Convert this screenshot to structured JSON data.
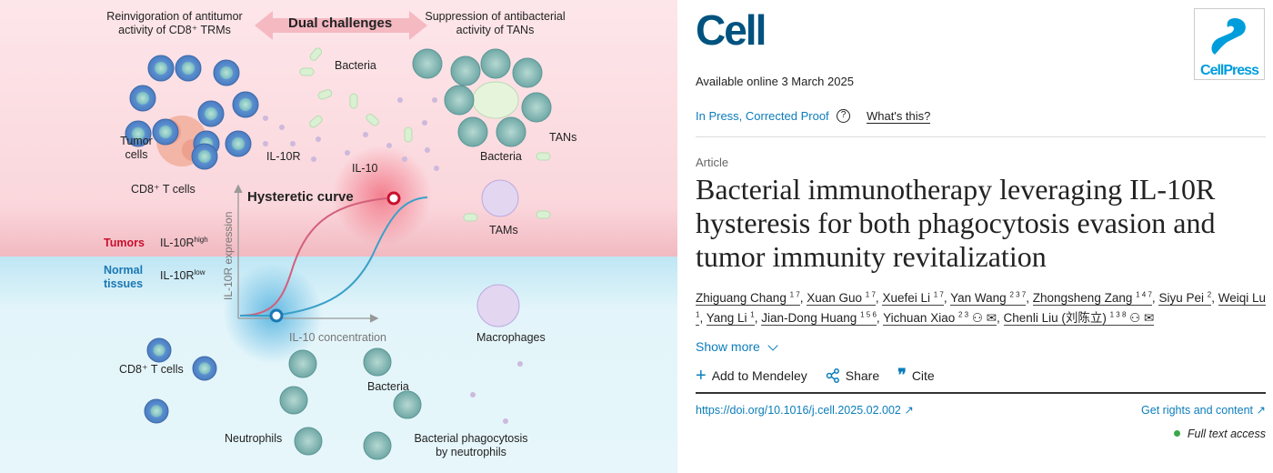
{
  "figure": {
    "top_left_title": "Reinvigoration of antitumor activity of CD8⁺ TRMs",
    "center_title": "Dual challenges",
    "top_right_title": "Suppression of antibacterial activity of TANs",
    "labels": {
      "bacteria_top": "Bacteria",
      "tumor_cells": "Tumor cells",
      "cd8_t_cells_top": "CD8⁺ T cells",
      "il10r": "IL-10R",
      "il10": "IL-10",
      "bacteria_right": "Bacteria",
      "tans": "TANs",
      "tams": "TAMs",
      "hysteretic_curve": "Hysteretic curve",
      "y_axis": "IL-10R expression",
      "x_axis": "IL-10 concentration",
      "tumors": "Tumors",
      "il10r_high": "IL-10R",
      "high_sup": "high",
      "normal_tissues": "Normal tissues",
      "il10r_low": "IL-10R",
      "low_sup": "low",
      "macrophages": "Macrophages",
      "cd8_t_cells_bottom": "CD8⁺ T cells",
      "bacteria_bottom": "Bacteria",
      "neutrophils": "Neutrophils",
      "phagocytosis": "Bacterial phagocytosis by neutrophils"
    },
    "colors": {
      "tumor_zone": "#fbe3e6",
      "normal_zone": "#e4f5f9",
      "tumor_red": "#c8102e",
      "normal_blue": "#1a78b4"
    }
  },
  "journal": {
    "logo": "Cell",
    "publisher_logo": "CellPress",
    "available_online": "Available online 3 March 2025",
    "status": "In Press, Corrected Proof",
    "help_icon": "question-circle-icon",
    "whats_this": "What's this?",
    "article_type": "Article",
    "title": "Bacterial immunotherapy leveraging IL-10R hysteresis for both phagocytosis evasion and tumor immunity revitalization",
    "authors": [
      {
        "name": "Zhiguang Chang",
        "sup": "1 7"
      },
      {
        "name": "Xuan Guo",
        "sup": "1 7"
      },
      {
        "name": "Xuefei Li",
        "sup": "1 7"
      },
      {
        "name": "Yan Wang",
        "sup": "2 3 7"
      },
      {
        "name": "Zhongsheng Zang",
        "sup": "1 4 7"
      },
      {
        "name": "Siyu Pei",
        "sup": "2"
      },
      {
        "name": "Weiqi Lu",
        "sup": "1"
      },
      {
        "name": "Yang Li",
        "sup": "1"
      },
      {
        "name": "Jian-Dong Huang",
        "sup": "1 5 6"
      },
      {
        "name": "Yichuan Xiao",
        "sup": "2 3",
        "icons": true
      },
      {
        "name": "Chenli Liu (刘陈立)",
        "sup": "1 3 8",
        "icons": true
      }
    ],
    "show_more": "Show more",
    "actions": {
      "mendeley": "Add to Mendeley",
      "share": "Share",
      "cite": "Cite"
    },
    "doi": "https://doi.org/10.1016/j.cell.2025.02.002",
    "rights": "Get rights and content",
    "access": "Full text access",
    "colors": {
      "logo": "#00527f",
      "link": "#0c7dbb",
      "access_dot": "#3aa84a",
      "cellpress": "#009ddc"
    }
  }
}
